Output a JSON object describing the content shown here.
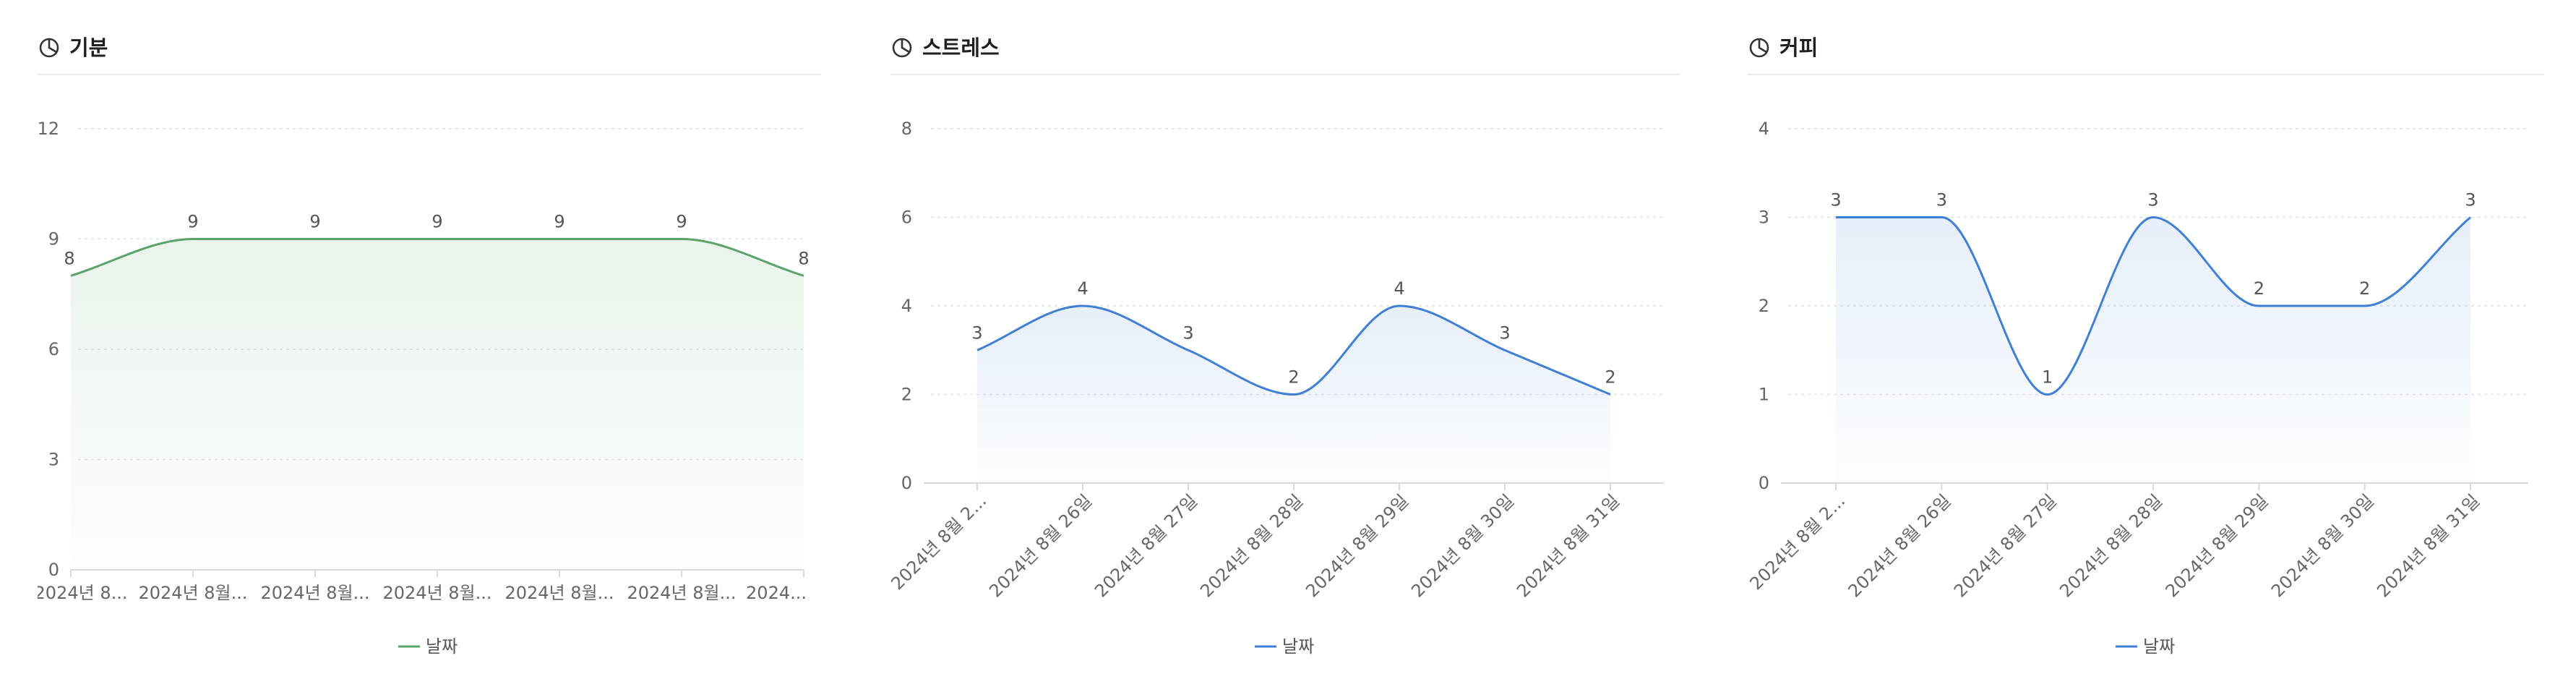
{
  "chart_data": [
    {
      "type": "area",
      "title": "기분",
      "color": "#5aa469",
      "fill_color": "#5aa469",
      "categories": [
        "2024년 8...",
        "2024년 8월...",
        "2024년 8월...",
        "2024년 8월...",
        "2024년 8월...",
        "2024년 8월...",
        "2024..."
      ],
      "series": [
        {
          "name": "날짜",
          "values": [
            8,
            9,
            9,
            9,
            9,
            9,
            8
          ]
        }
      ],
      "ylim": [
        0,
        12
      ],
      "yticks": [
        "0",
        "3",
        "6",
        "9",
        "12"
      ],
      "grid": true,
      "legend": "bottom",
      "xlabel_rotation": 0
    },
    {
      "type": "area",
      "title": "스트레스",
      "color": "#3f7fd6",
      "fill_color": "#3f7fd6",
      "categories": [
        "2024년 8월 2...",
        "2024년 8월 26일",
        "2024년 8월 27일",
        "2024년 8월 28일",
        "2024년 8월 29일",
        "2024년 8월 30일",
        "2024년 8월 31일"
      ],
      "series": [
        {
          "name": "날짜",
          "values": [
            3,
            4,
            3,
            2,
            4,
            3,
            2
          ]
        }
      ],
      "ylim": [
        0,
        8
      ],
      "yticks": [
        "0",
        "2",
        "4",
        "6",
        "8"
      ],
      "grid": true,
      "legend": "bottom",
      "xlabel_rotation": -45
    },
    {
      "type": "area",
      "title": "커피",
      "color": "#3f7fd6",
      "fill_color": "#3f7fd6",
      "categories": [
        "2024년 8월 2...",
        "2024년 8월 26일",
        "2024년 8월 27일",
        "2024년 8월 28일",
        "2024년 8월 29일",
        "2024년 8월 30일",
        "2024년 8월 31일"
      ],
      "series": [
        {
          "name": "날짜",
          "values": [
            3,
            3,
            1,
            3,
            2,
            2,
            3
          ]
        }
      ],
      "ylim": [
        0,
        4
      ],
      "yticks": [
        "0",
        "1",
        "2",
        "3",
        "4"
      ],
      "grid": true,
      "legend": "bottom",
      "xlabel_rotation": -45
    }
  ]
}
